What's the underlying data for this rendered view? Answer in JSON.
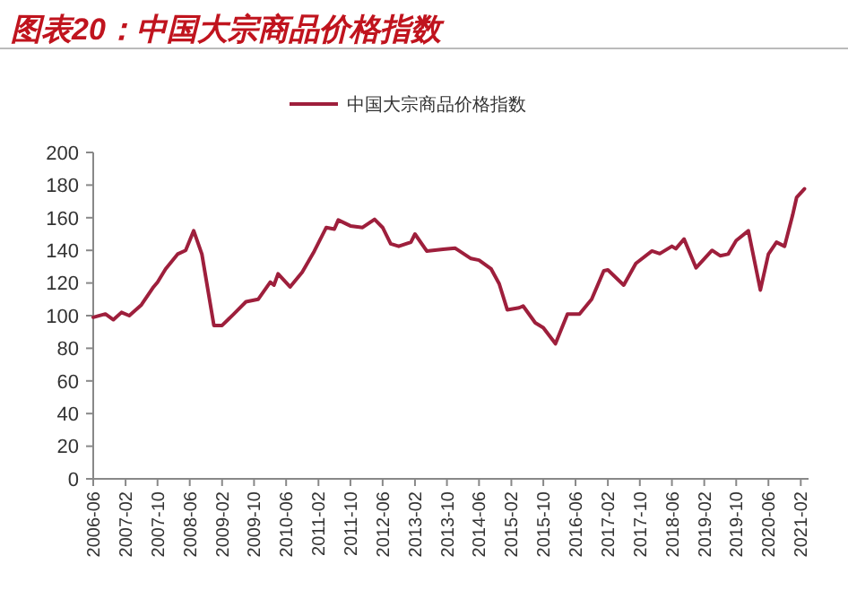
{
  "chart_data": {
    "type": "line",
    "title": "图表20：中国大宗商品价格指数",
    "x": [
      "2006-06",
      "2006-09",
      "2006-11",
      "2007-01",
      "2007-03",
      "2007-06",
      "2007-09",
      "2007-10",
      "2007-12",
      "2008-03",
      "2008-05",
      "2008-07",
      "2008-09",
      "2008-12",
      "2009-02",
      "2009-05",
      "2009-08",
      "2009-11",
      "2010-02",
      "2010-03",
      "2010-04",
      "2010-07",
      "2010-10",
      "2011-01",
      "2011-04",
      "2011-06",
      "2011-07",
      "2011-10",
      "2012-01",
      "2012-04",
      "2012-06",
      "2012-08",
      "2012-10",
      "2013-01",
      "2013-02",
      "2013-05",
      "2013-09",
      "2013-12",
      "2014-04",
      "2014-06",
      "2014-09",
      "2014-11",
      "2015-01",
      "2015-04",
      "2015-05",
      "2015-08",
      "2015-10",
      "2016-01",
      "2016-04",
      "2016-07",
      "2016-10",
      "2017-01",
      "2017-02",
      "2017-06",
      "2017-09",
      "2018-01",
      "2018-03",
      "2018-06",
      "2018-07",
      "2018-09",
      "2018-12",
      "2019-04",
      "2019-06",
      "2019-08",
      "2019-10",
      "2020-01",
      "2020-04",
      "2020-06",
      "2020-08",
      "2020-10",
      "2020-12",
      "2021-01",
      "2021-03"
    ],
    "series": [
      {
        "name": "中国大宗商品价格指数",
        "color": "#9e1f3c",
        "values": [
          99,
          101,
          97.5,
          102,
          100,
          106.6,
          117.6,
          120.5,
          128.6,
          137.7,
          140,
          152,
          137.7,
          94,
          94,
          101,
          108.5,
          110,
          120.5,
          118.7,
          125.6,
          117.6,
          126.7,
          139.6,
          154,
          153,
          158.6,
          155,
          154,
          159,
          154,
          144,
          142.5,
          145,
          150,
          139.6,
          140.6,
          141.4,
          135,
          134,
          128.6,
          119.5,
          103.6,
          104.8,
          105.9,
          95.6,
          92.6,
          82.8,
          101,
          101,
          110,
          127.5,
          128,
          118.7,
          132,
          139.6,
          138,
          142.5,
          141,
          146.9,
          129.3,
          140,
          136.7,
          137.7,
          146,
          152,
          115.7,
          137.7,
          145,
          142.5,
          161.5,
          172.5,
          177.7
        ]
      }
    ],
    "xlim": [
      "2006-06",
      "2021-04"
    ],
    "xticks": [
      "2006-06",
      "2007-02",
      "2007-10",
      "2008-06",
      "2009-02",
      "2009-10",
      "2010-06",
      "2011-02",
      "2011-10",
      "2012-06",
      "2013-02",
      "2013-10",
      "2014-06",
      "2015-02",
      "2015-10",
      "2016-06",
      "2017-02",
      "2017-10",
      "2018-06",
      "2019-02",
      "2019-10",
      "2020-06",
      "2021-02"
    ],
    "ylim": [
      0,
      200
    ],
    "yticks": [
      0,
      20,
      40,
      60,
      80,
      100,
      120,
      140,
      160,
      180,
      200
    ],
    "legend": "top",
    "grid": false,
    "marker": "none",
    "line_style": "solid"
  }
}
